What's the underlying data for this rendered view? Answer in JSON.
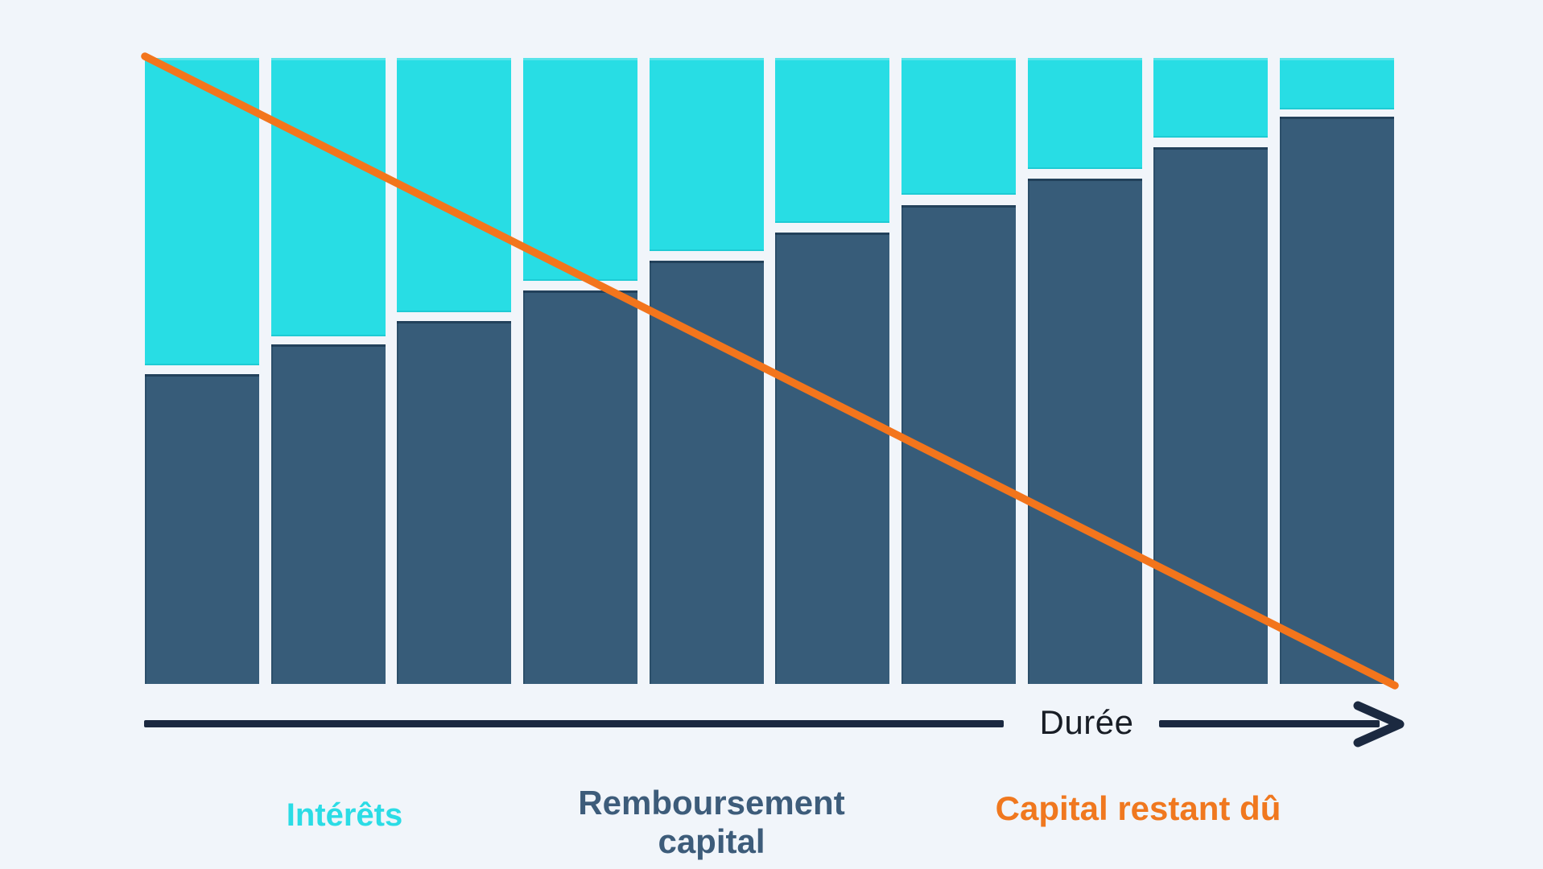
{
  "colors": {
    "background": "#f1f5fa",
    "interest": "#28dde4",
    "capital": "#375c79",
    "remaining_line": "#f3751c",
    "axis": "#1b2940",
    "axis_label_text": "#181d25",
    "legend_interest_text": "#2bdce5",
    "legend_capital_text": "#3d5c7a",
    "legend_remaining_text": "#f0781f"
  },
  "axis": {
    "label": "Durée"
  },
  "legend": {
    "interest": "Intérêts",
    "capital_line1": "Remboursement",
    "capital_line2": "capital",
    "remaining": "Capital restant dû"
  },
  "chart_data": {
    "type": "bar",
    "stacked": true,
    "bars": 10,
    "grid": false,
    "x_axis_label": "Durée",
    "value_units": "percent of plot height (no numeric scale shown in image)",
    "ylim": [
      0,
      100
    ],
    "series": [
      {
        "name": "Intérêts",
        "role": "interest-top-segment",
        "color": "#28dde4",
        "values": [
          49.1,
          44.5,
          40.6,
          35.6,
          30.8,
          26.3,
          21.9,
          17.7,
          12.7,
          8.2
        ]
      },
      {
        "name": "Remboursement capital",
        "role": "capital-bottom-segment",
        "color": "#375c79",
        "values": [
          49.5,
          54.2,
          58.0,
          62.9,
          67.6,
          72.1,
          76.5,
          80.7,
          85.7,
          90.6
        ]
      }
    ],
    "overlay_line": {
      "name": "Capital restant dû",
      "color": "#f3751c",
      "shape": "straight diagonal",
      "start": {
        "x_pct": 0,
        "y_pct": 100
      },
      "end": {
        "x_pct": 100,
        "y_pct": 0
      }
    },
    "legend_position": "bottom"
  }
}
